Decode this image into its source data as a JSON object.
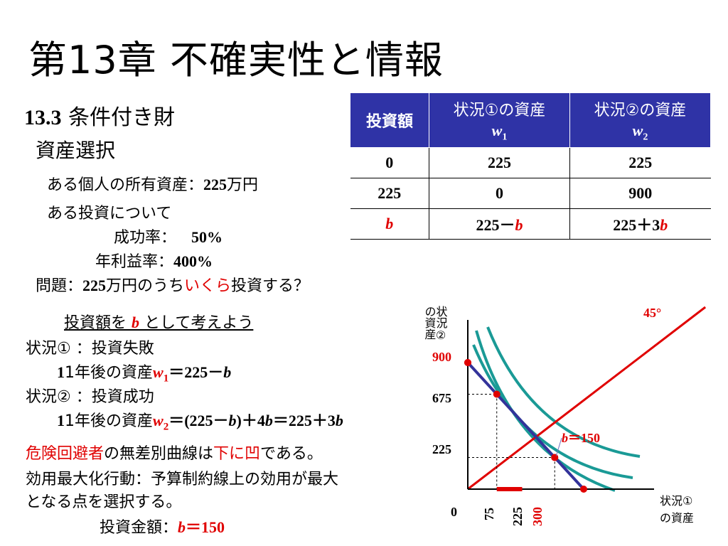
{
  "title": "第13章 不確実性と情報",
  "section": {
    "number": "13.3",
    "label": "条件付き財"
  },
  "subsection": "資産選択",
  "premise": {
    "holding_label": "ある個人の所有資産：",
    "holding_value": "225",
    "holding_unit": "万円",
    "invest_intro": "ある投資について",
    "success_label": "成功率：",
    "success_value": "50%",
    "rate_label": "年利益率：",
    "rate_value": "400%",
    "question_label": "問題：",
    "question_value": "225",
    "question_text1": "万円のうち",
    "question_red": "いくら",
    "question_text2": "投資する？"
  },
  "table": {
    "headers": [
      {
        "label": "投資額",
        "var": ""
      },
      {
        "label": "状況①の資産",
        "var": "w",
        "sub": "1"
      },
      {
        "label": "状況②の資産",
        "var": "w",
        "sub": "2"
      }
    ],
    "rows": [
      [
        "0",
        "225",
        "225"
      ],
      [
        "225",
        "0",
        "900"
      ],
      [
        "b",
        "225－b",
        "225＋3b"
      ]
    ]
  },
  "derivation": {
    "heading_pre": "投資額を ",
    "heading_var": "b",
    "heading_post": " として考えよう",
    "case1_label": "状況① ：投資失敗",
    "case1_text": "1年後の資産",
    "case1_var": "w",
    "case1_sub": "1",
    "case1_eq": "＝225－",
    "case1_b": "b",
    "case2_label": "状況② ：投資成功",
    "case2_text": "1年後の資産",
    "case2_var": "w",
    "case2_sub": "2",
    "case2_eq": "＝(225－",
    "case2_eq_b1": "b",
    "case2_eq_mid": ")＋4",
    "case2_eq_b2": "b",
    "case2_eq_mid2": "＝225＋3",
    "case2_eq_b3": "b"
  },
  "risk": {
    "red1": "危険回避者",
    "text1": "の無差別曲線は",
    "red2": "下に凹",
    "text2": "である。"
  },
  "utility": {
    "line1": "効用最大化行動：予算制約線上の効用が最大",
    "line2": "となる点を選択する。",
    "answer_label": "投資金額：",
    "answer_var": "b",
    "answer_value": "＝150"
  },
  "graph": {
    "y_axis_label_col1": "状況②",
    "y_axis_label_col2": "の資産",
    "x_axis_label_line1": "状況①",
    "x_axis_label_line2": "の資産",
    "origin": "0",
    "angle_label": "45°",
    "y_ticks": {
      "t900": "900",
      "t675": "675",
      "t225": "225"
    },
    "x_ticks": {
      "t75": "75",
      "t225": "225",
      "t300": "300"
    },
    "point_label_var": "b",
    "point_label_value": "＝150",
    "colors": {
      "budget": "#33339a",
      "indifference": "#1a9a96",
      "diagonal": "#e00000",
      "axis": "#000000"
    }
  },
  "chart_data": {
    "type": "line",
    "xlabel": "状況①の資産",
    "ylabel": "状況②の資産",
    "budget_line": {
      "x": [
        0,
        300
      ],
      "y": [
        900,
        0
      ]
    },
    "diagonal_45": {
      "x": [
        0,
        300
      ],
      "y": [
        0,
        300
      ]
    },
    "points": [
      {
        "x": 0,
        "y": 900
      },
      {
        "x": 75,
        "y": 675
      },
      {
        "x": 150,
        "y": 450
      },
      {
        "x": 225,
        "y": 225
      },
      {
        "x": 300,
        "y": 0
      }
    ],
    "highlight_segment_x": [
      75,
      150
    ],
    "annotations": [
      "45°",
      "b＝150"
    ]
  }
}
